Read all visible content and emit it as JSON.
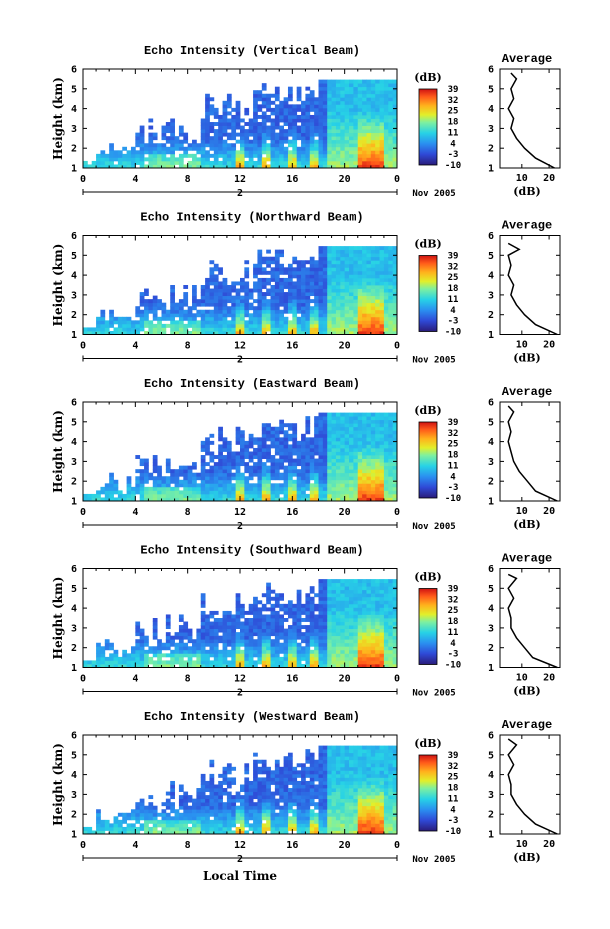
{
  "figure": {
    "xlabel": "Local Time",
    "date_label": "Nov 2005",
    "day_label": "2",
    "avg_title": "Average",
    "avg_xlabel": "(dB)",
    "cb_unit": "(dB)",
    "ylabel": "Height (km)"
  },
  "chart_data": [
    {
      "type": "heatmap",
      "title": "Echo Intensity (Vertical Beam)",
      "xlabel": "Local Time",
      "ylabel": "Height (km)",
      "x_ticks": [
        "0",
        "4",
        "8",
        "12",
        "16",
        "20",
        "0"
      ],
      "xlim": [
        0,
        24
      ],
      "ylim": [
        1,
        6
      ],
      "y_ticks": [
        "1",
        "2",
        "3",
        "4",
        "5",
        "6"
      ],
      "colorbar": {
        "label": "(dB)",
        "ticks": [
          "39",
          "32",
          "25",
          "18",
          "11",
          "4",
          "-3",
          "-10"
        ],
        "range": [
          -10,
          39
        ]
      },
      "average_profile": {
        "title": "Average",
        "xlabel": "(dB)",
        "xlim": [
          2,
          24
        ],
        "ylim": [
          1,
          6
        ],
        "x_ticks": [
          "10",
          "20"
        ],
        "height_km": [
          1.0,
          1.5,
          2.0,
          2.5,
          3.0,
          3.5,
          4.0,
          4.5,
          5.0,
          5.5,
          5.8
        ],
        "mean_db": [
          22,
          15,
          11,
          8,
          6,
          7,
          5,
          7,
          6,
          8,
          6
        ]
      }
    },
    {
      "type": "heatmap",
      "title": "Echo Intensity (Northward Beam)",
      "xlabel": "Local Time",
      "ylabel": "Height (km)",
      "x_ticks": [
        "0",
        "4",
        "8",
        "12",
        "16",
        "20",
        "0"
      ],
      "xlim": [
        0,
        24
      ],
      "ylim": [
        1,
        6
      ],
      "y_ticks": [
        "1",
        "2",
        "3",
        "4",
        "5",
        "6"
      ],
      "colorbar": {
        "label": "(dB)",
        "ticks": [
          "39",
          "32",
          "25",
          "18",
          "11",
          "4",
          "-3",
          "-10"
        ],
        "range": [
          -10,
          39
        ]
      },
      "average_profile": {
        "title": "Average",
        "xlabel": "(dB)",
        "xlim": [
          2,
          24
        ],
        "ylim": [
          1,
          6
        ],
        "x_ticks": [
          "10",
          "20"
        ],
        "height_km": [
          1.0,
          1.5,
          2.0,
          2.5,
          3.0,
          3.5,
          4.0,
          4.5,
          5.0,
          5.3,
          5.6
        ],
        "mean_db": [
          23,
          15,
          11,
          8,
          6,
          7,
          5,
          6,
          5,
          9,
          5
        ]
      }
    },
    {
      "type": "heatmap",
      "title": "Echo Intensity (Eastward Beam)",
      "xlabel": "Local Time",
      "ylabel": "Height (km)",
      "x_ticks": [
        "0",
        "4",
        "8",
        "12",
        "16",
        "20",
        "0"
      ],
      "xlim": [
        0,
        24
      ],
      "ylim": [
        1,
        6
      ],
      "y_ticks": [
        "1",
        "2",
        "3",
        "4",
        "5",
        "6"
      ],
      "colorbar": {
        "label": "(dB)",
        "ticks": [
          "39",
          "32",
          "25",
          "18",
          "11",
          "4",
          "-3",
          "-10"
        ],
        "range": [
          -10,
          39
        ]
      },
      "average_profile": {
        "title": "Average",
        "xlabel": "(dB)",
        "xlim": [
          2,
          24
        ],
        "ylim": [
          1,
          6
        ],
        "x_ticks": [
          "10",
          "20"
        ],
        "height_km": [
          1.0,
          1.5,
          2.0,
          2.5,
          3.0,
          3.5,
          4.0,
          4.5,
          5.0,
          5.5,
          5.8
        ],
        "mean_db": [
          23,
          15,
          12,
          9,
          7,
          6,
          5,
          6,
          5,
          7,
          5
        ]
      }
    },
    {
      "type": "heatmap",
      "title": "Echo Intensity (Southward Beam)",
      "xlabel": "Local Time",
      "ylabel": "Height (km)",
      "x_ticks": [
        "0",
        "4",
        "8",
        "12",
        "16",
        "20",
        "0"
      ],
      "xlim": [
        0,
        24
      ],
      "ylim": [
        1,
        6
      ],
      "y_ticks": [
        "1",
        "2",
        "3",
        "4",
        "5",
        "6"
      ],
      "colorbar": {
        "label": "(dB)",
        "ticks": [
          "39",
          "32",
          "25",
          "18",
          "11",
          "4",
          "-3",
          "-10"
        ],
        "range": [
          -10,
          39
        ]
      },
      "average_profile": {
        "title": "Average",
        "xlabel": "(dB)",
        "xlim": [
          2,
          24
        ],
        "ylim": [
          1,
          6
        ],
        "x_ticks": [
          "10",
          "20"
        ],
        "height_km": [
          1.0,
          1.5,
          2.0,
          2.5,
          3.0,
          3.5,
          4.0,
          4.5,
          5.0,
          5.5,
          5.7
        ],
        "mean_db": [
          23,
          14,
          11,
          8,
          6,
          6,
          5,
          7,
          5,
          8,
          5
        ]
      }
    },
    {
      "type": "heatmap",
      "title": "Echo Intensity (Westward Beam)",
      "xlabel": "Local Time",
      "ylabel": "Height (km)",
      "x_ticks": [
        "0",
        "4",
        "8",
        "12",
        "16",
        "20",
        "0"
      ],
      "xlim": [
        0,
        24
      ],
      "ylim": [
        1,
        6
      ],
      "y_ticks": [
        "1",
        "2",
        "3",
        "4",
        "5",
        "6"
      ],
      "colorbar": {
        "label": "(dB)",
        "ticks": [
          "39",
          "32",
          "25",
          "18",
          "11",
          "4",
          "-3",
          "-10"
        ],
        "range": [
          -10,
          39
        ]
      },
      "average_profile": {
        "title": "Average",
        "xlabel": "(dB)",
        "xlim": [
          2,
          24
        ],
        "ylim": [
          1,
          6
        ],
        "x_ticks": [
          "10",
          "20"
        ],
        "height_km": [
          1.0,
          1.5,
          2.0,
          2.5,
          3.0,
          3.5,
          4.0,
          4.5,
          5.0,
          5.5,
          5.8
        ],
        "mean_db": [
          23,
          15,
          11,
          8,
          6,
          6,
          5,
          7,
          5,
          8,
          5
        ]
      }
    }
  ]
}
